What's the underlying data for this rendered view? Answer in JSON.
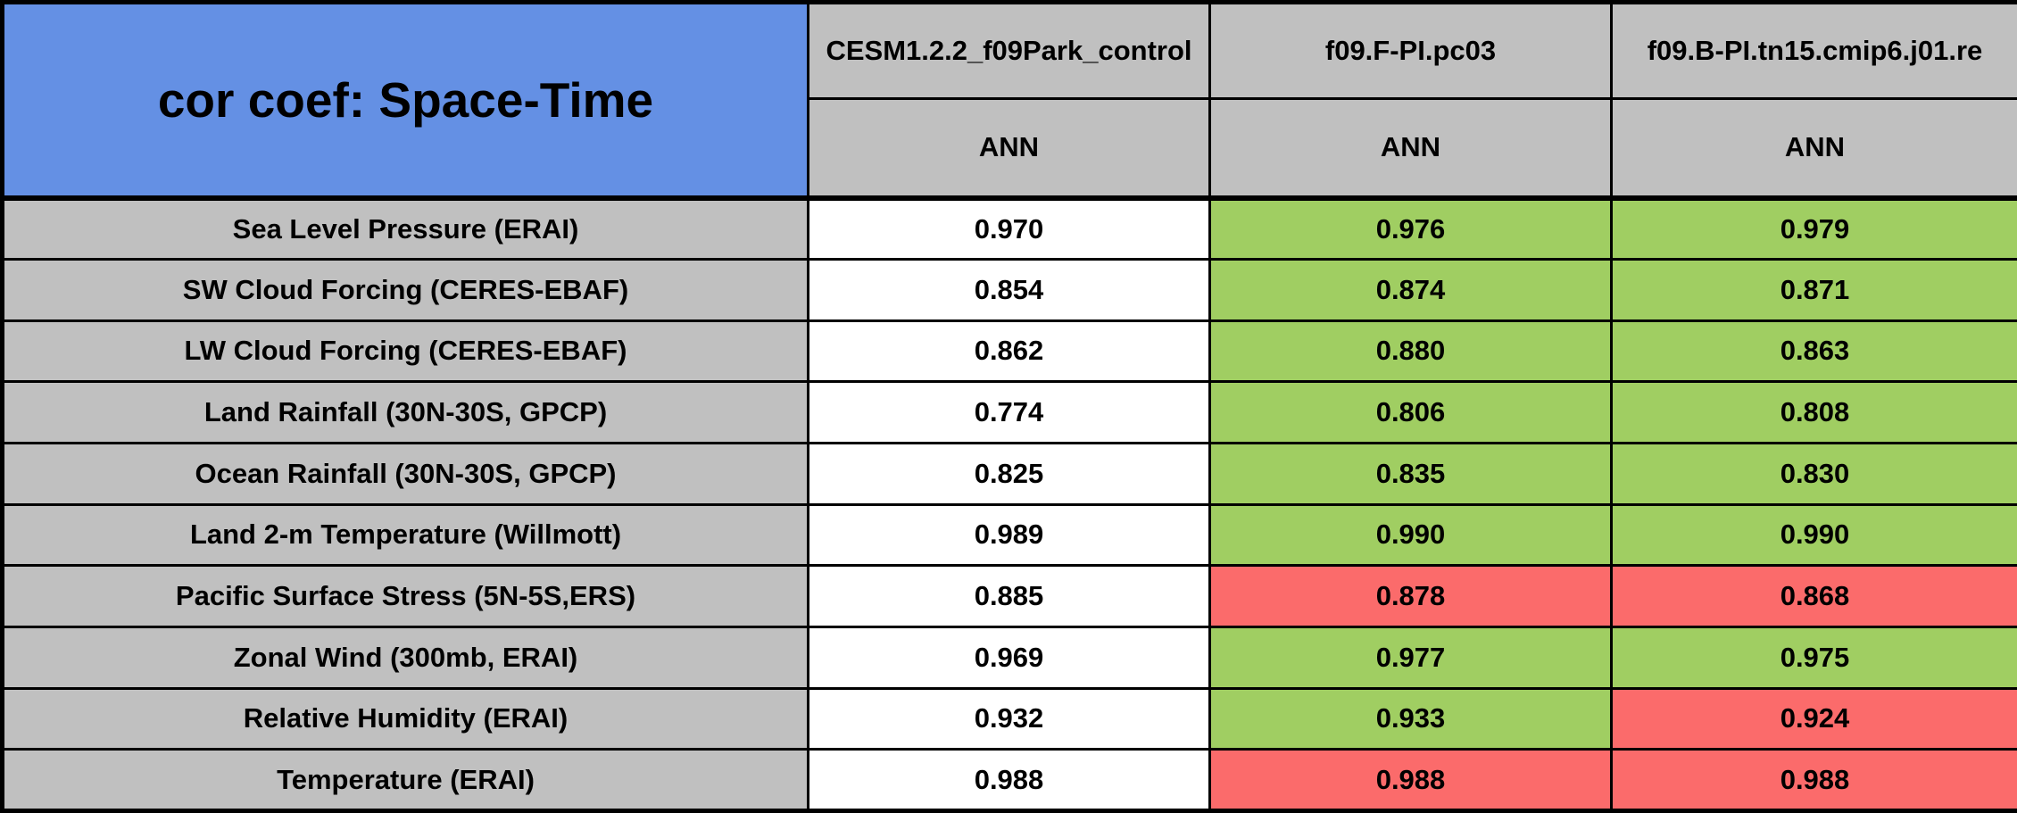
{
  "colors": {
    "header_blue": "#6490E4",
    "header_gray": "#C0C0C0",
    "baseline_white": "#FFFFFF",
    "better_green": "#A0CE62",
    "worse_red": "#FB6B6B",
    "border_black": "#000000"
  },
  "chart_data": {
    "type": "table",
    "title": "cor coef: Space-Time",
    "season_row_label": "ANN",
    "columns": [
      {
        "model": "CESM1.2.2_f09Park_control",
        "season": "ANN"
      },
      {
        "model": "f09.F-PI.pc03",
        "season": "ANN"
      },
      {
        "model": "f09.B-PI.tn15.cmip6.j01.re",
        "season": "ANN"
      }
    ],
    "rows": [
      {
        "label": "Sea Level Pressure (ERAI)",
        "values": [
          {
            "value": "0.970",
            "status": "baseline"
          },
          {
            "value": "0.976",
            "status": "better"
          },
          {
            "value": "0.979",
            "status": "better"
          }
        ]
      },
      {
        "label": "SW Cloud Forcing (CERES-EBAF)",
        "values": [
          {
            "value": "0.854",
            "status": "baseline"
          },
          {
            "value": "0.874",
            "status": "better"
          },
          {
            "value": "0.871",
            "status": "better"
          }
        ]
      },
      {
        "label": "LW Cloud Forcing (CERES-EBAF)",
        "values": [
          {
            "value": "0.862",
            "status": "baseline"
          },
          {
            "value": "0.880",
            "status": "better"
          },
          {
            "value": "0.863",
            "status": "better"
          }
        ]
      },
      {
        "label": "Land Rainfall (30N-30S, GPCP)",
        "values": [
          {
            "value": "0.774",
            "status": "baseline"
          },
          {
            "value": "0.806",
            "status": "better"
          },
          {
            "value": "0.808",
            "status": "better"
          }
        ]
      },
      {
        "label": "Ocean Rainfall (30N-30S, GPCP)",
        "values": [
          {
            "value": "0.825",
            "status": "baseline"
          },
          {
            "value": "0.835",
            "status": "better"
          },
          {
            "value": "0.830",
            "status": "better"
          }
        ]
      },
      {
        "label": "Land 2-m Temperature (Willmott)",
        "values": [
          {
            "value": "0.989",
            "status": "baseline"
          },
          {
            "value": "0.990",
            "status": "better"
          },
          {
            "value": "0.990",
            "status": "better"
          }
        ]
      },
      {
        "label": "Pacific Surface Stress (5N-5S,ERS)",
        "values": [
          {
            "value": "0.885",
            "status": "baseline"
          },
          {
            "value": "0.878",
            "status": "worse"
          },
          {
            "value": "0.868",
            "status": "worse"
          }
        ]
      },
      {
        "label": "Zonal Wind (300mb, ERAI)",
        "values": [
          {
            "value": "0.969",
            "status": "baseline"
          },
          {
            "value": "0.977",
            "status": "better"
          },
          {
            "value": "0.975",
            "status": "better"
          }
        ]
      },
      {
        "label": "Relative Humidity (ERAI)",
        "values": [
          {
            "value": "0.932",
            "status": "baseline"
          },
          {
            "value": "0.933",
            "status": "better"
          },
          {
            "value": "0.924",
            "status": "worse"
          }
        ]
      },
      {
        "label": "Temperature (ERAI)",
        "values": [
          {
            "value": "0.988",
            "status": "baseline"
          },
          {
            "value": "0.988",
            "status": "worse"
          },
          {
            "value": "0.988",
            "status": "worse"
          }
        ]
      }
    ]
  }
}
